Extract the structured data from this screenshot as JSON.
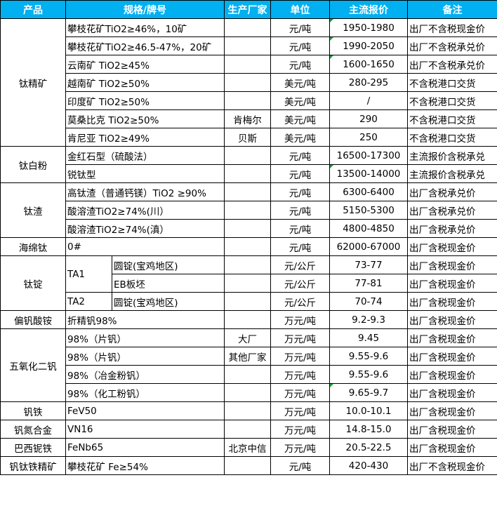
{
  "header": {
    "product": "产品",
    "spec": "规格/牌号",
    "maker": "生产厂家",
    "unit": "单位",
    "price": "主流报价",
    "note": "备注"
  },
  "colors": {
    "header_bg": "#00B0F0",
    "comment_marker": "#1E9E3A"
  },
  "groups": [
    {
      "product": "钛精矿",
      "rows": [
        {
          "spec": "攀枝花矿TiO2≥46%，10矿",
          "maker": "",
          "unit": "元/吨",
          "price": "1950-1980",
          "note": "出厂不含税现金价",
          "marker": true
        },
        {
          "spec": "攀枝花矿TiO2≥46.5-47%，20矿",
          "maker": "",
          "unit": "元/吨",
          "price": "1990-2050",
          "note": "出厂不含税承兑价",
          "marker": true
        },
        {
          "spec": "云南矿 TiO2≥45%",
          "maker": "",
          "unit": "元/吨",
          "price": "1600-1650",
          "note": "出厂不含税承兑价",
          "marker": true
        },
        {
          "spec": "越南矿 TiO2≥50%",
          "maker": "",
          "unit": "美元/吨",
          "price": "280-295",
          "note": "不含税港口交货"
        },
        {
          "spec": "印度矿 TiO2≥50%",
          "maker": "",
          "unit": "美元/吨",
          "price": "/",
          "note": "不含税港口交货"
        },
        {
          "spec": "莫桑比克 TiO2≥50%",
          "maker": "肯梅尔",
          "unit": "美元/吨",
          "price": "290",
          "note": "不含税港口交货"
        },
        {
          "spec": "肯尼亚 TiO2≥49%",
          "maker": "贝斯",
          "unit": "美元/吨",
          "price": "250",
          "note": "不含税港口交货"
        }
      ]
    },
    {
      "product": "钛白粉",
      "rows": [
        {
          "spec": "金红石型（硫酸法）",
          "maker": "",
          "unit": "元/吨",
          "price": "16500-17300",
          "note": "主流报价含税承兑"
        },
        {
          "spec": "锐钛型",
          "maker": "",
          "unit": "元/吨",
          "price": "13500-14000",
          "note": "主流报价含税承兑",
          "marker": true
        }
      ]
    },
    {
      "product": "钛渣",
      "rows": [
        {
          "spec": "高钛渣（普通钙镁）TiO2 ≥90%",
          "maker": "",
          "unit": "元/吨",
          "price": "6300-6400",
          "note": "出厂含税承兑价"
        },
        {
          "spec": "酸溶渣TiO2≥74%(川）",
          "maker": "",
          "unit": "元/吨",
          "price": "5150-5300",
          "note": "出厂含税承兑价"
        },
        {
          "spec": "酸溶渣TiO2≥74%(滇）",
          "maker": "",
          "unit": "元/吨",
          "price": "4800-4850",
          "note": "出厂含税承兑价"
        }
      ]
    },
    {
      "product": "海绵钛",
      "rows": [
        {
          "spec": "0#",
          "maker": "",
          "unit": "元/吨",
          "price": "62000-67000",
          "note": "出厂含税现金价"
        }
      ]
    },
    {
      "product": "钛锭",
      "rows": [
        {
          "grade": "TA1",
          "spec": "圆锭(宝鸡地区)",
          "maker": "",
          "unit": "元/公斤",
          "price": "73-77",
          "note": "出厂含税现金价"
        },
        {
          "spec": "EB板坯",
          "maker": "",
          "unit": "元/公斤",
          "price": "77-81",
          "note": "出厂含税现金价"
        },
        {
          "grade": "TA2",
          "spec": "圆锭(宝鸡地区)",
          "maker": "",
          "unit": "元/公斤",
          "price": "70-74",
          "note": "出厂含税现金价"
        }
      ]
    },
    {
      "product": "偏钒酸铵",
      "rows": [
        {
          "spec": "折精钒98%",
          "maker": "",
          "unit": "万元/吨",
          "price": "9.2-9.3",
          "note": "出厂含税现金价"
        }
      ]
    },
    {
      "product": "五氧化二钒",
      "rows": [
        {
          "spec": "98%（片钒）",
          "maker": "大厂",
          "unit": "万元/吨",
          "price": "9.45",
          "note": "出厂含税现金价"
        },
        {
          "spec": "98%（片钒）",
          "maker": "其他厂家",
          "unit": "万元/吨",
          "price": "9.55-9.6",
          "note": "出厂含税现金价"
        },
        {
          "spec": "98%（冶金粉钒）",
          "maker": "",
          "unit": "万元/吨",
          "price": "9.55-9.6",
          "note": "出厂含税现金价"
        },
        {
          "spec": "98%（化工粉钒）",
          "maker": "",
          "unit": "万元/吨",
          "price": "9.65-9.7",
          "note": "出厂含税现金价",
          "marker": true
        }
      ]
    },
    {
      "product": "钒铁",
      "rows": [
        {
          "spec": "FeV50",
          "maker": "",
          "unit": "万元/吨",
          "price": "10.0-10.1",
          "note": "出厂含税现金价"
        }
      ]
    },
    {
      "product": "钒氮合金",
      "rows": [
        {
          "spec": "VN16",
          "maker": "",
          "unit": "万元/吨",
          "price": "14.8-15.0",
          "note": "出厂含税现金价"
        }
      ]
    },
    {
      "product": "巴西铌铁",
      "rows": [
        {
          "spec": "FeNb65",
          "maker": "北京中信",
          "unit": "万元/吨",
          "price": "20.5-22.5",
          "note": "出厂含税现金价"
        }
      ]
    },
    {
      "product": "钒钛铁精矿",
      "rows": [
        {
          "spec": "攀枝花矿 Fe≥54%",
          "maker": "",
          "unit": "元/吨",
          "price": "420-430",
          "note": "出厂不含税现金价"
        }
      ]
    }
  ]
}
